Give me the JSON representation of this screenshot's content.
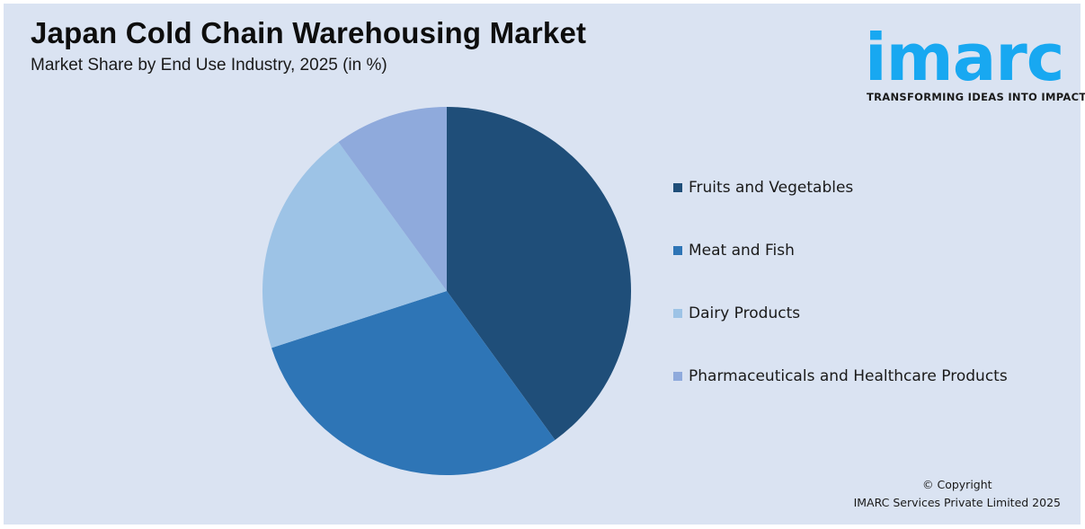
{
  "header": {
    "title": "Japan Cold Chain Warehousing Market",
    "subtitle": "Market Share by End Use Industry, 2025 (in %)"
  },
  "logo": {
    "word": "imarc",
    "tagline": "TRANSFORMING IDEAS INTO IMPACT",
    "color": "#18a8f1"
  },
  "footer": {
    "copyright_line1": "© Copyright",
    "copyright_line2": "IMARC Services Private Limited 2025"
  },
  "legend": {
    "items": [
      {
        "label": "Fruits and Vegetables",
        "color": "#1f4e79"
      },
      {
        "label": "Meat and Fish",
        "color": "#2e75b6"
      },
      {
        "label": "Dairy Products",
        "color": "#9dc3e6"
      },
      {
        "label": "Pharmaceuticals and Healthcare Products",
        "color": "#8faadc"
      }
    ]
  },
  "chart_data": {
    "type": "pie",
    "title": "Japan Cold Chain Warehousing Market",
    "subtitle": "Market Share by End Use Industry, 2025 (in %)",
    "categories": [
      "Fruits and Vegetables",
      "Meat and Fish",
      "Dairy Products",
      "Pharmaceuticals and Healthcare Products"
    ],
    "values": [
      40,
      30,
      20,
      10
    ],
    "colors": [
      "#1f4e79",
      "#2e75b6",
      "#9dc3e6",
      "#8faadc"
    ],
    "start_angle": "12 o'clock, clockwise",
    "legend_position": "right",
    "data_labels": false
  }
}
